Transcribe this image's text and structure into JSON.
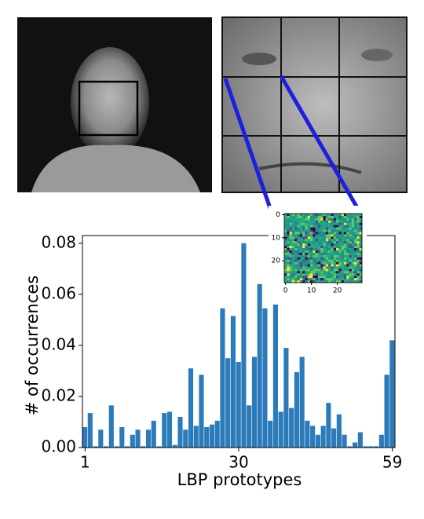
{
  "chart_data": {
    "type": "bar",
    "xlabel": "LBP prototypes",
    "ylabel": "# of occurrences",
    "x": [
      1,
      2,
      3,
      4,
      5,
      6,
      7,
      8,
      9,
      10,
      11,
      12,
      13,
      14,
      15,
      16,
      17,
      18,
      19,
      20,
      21,
      22,
      23,
      24,
      25,
      26,
      27,
      28,
      29,
      30,
      31,
      32,
      33,
      34,
      35,
      36,
      37,
      38,
      39,
      40,
      41,
      42,
      43,
      44,
      45,
      46,
      47,
      48,
      49,
      50,
      51,
      52,
      53,
      54,
      55,
      56,
      57,
      58,
      59
    ],
    "values": [
      0.008,
      0.0135,
      0.0005,
      0.007,
      0.0005,
      0.0165,
      0.0005,
      0.008,
      0.0005,
      0.005,
      0.007,
      0.0005,
      0.007,
      0.0105,
      0.0005,
      0.0135,
      0.014,
      0.001,
      0.012,
      0.007,
      0.031,
      0.0085,
      0.0285,
      0.008,
      0.009,
      0.0105,
      0.0545,
      0.035,
      0.0515,
      0.0335,
      0.08,
      0.0165,
      0.0355,
      0.064,
      0.0545,
      0.0105,
      0.056,
      0.014,
      0.039,
      0.0155,
      0.0295,
      0.0355,
      0.0105,
      0.0085,
      0.005,
      0.0085,
      0.0175,
      0.0075,
      0.013,
      0.005,
      0.0005,
      0.002,
      0.006,
      0.0005,
      0.0005,
      0.0005,
      0.005,
      0.0285,
      0.042
    ],
    "color": "#2b7bba",
    "xlim": [
      0.5,
      59.5
    ],
    "xticks": [
      1,
      30,
      59
    ],
    "ylim": [
      0,
      0.083
    ],
    "yticks": [
      {
        "value": 0,
        "label": "0.00"
      },
      {
        "value": 0.02,
        "label": "0.02"
      },
      {
        "value": 0.04,
        "label": "0.04"
      },
      {
        "value": 0.06,
        "label": "0.06"
      },
      {
        "value": 0.08,
        "label": "0.08"
      }
    ],
    "inset": {
      "xlim": [
        -0.5,
        29.5
      ],
      "ylim": [
        -0.5,
        29.5
      ],
      "xticks": [
        0,
        10,
        20
      ],
      "yticks": [
        0,
        10,
        20
      ]
    }
  }
}
